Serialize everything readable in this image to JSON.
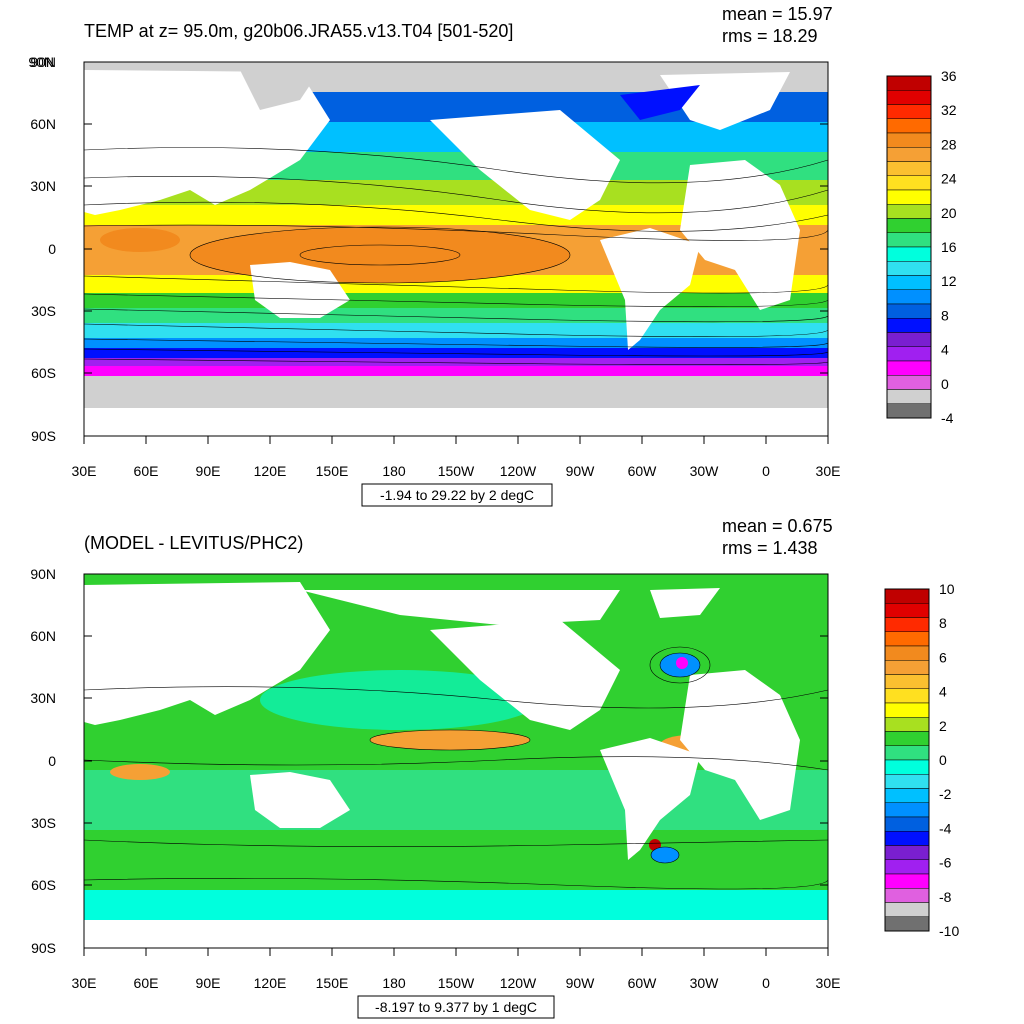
{
  "panels": [
    {
      "title": "TEMP at z=  95.0m, g20b06.JRA55.v13.T04 [501-520]",
      "mean_text": "mean = 15.97",
      "rms_text": "rms = 18.29",
      "range_text": "-1.94 to 29.22 by 2 degC",
      "colorbar": {
        "labels": [
          "36",
          "32",
          "28",
          "24",
          "20",
          "16",
          "12",
          "8",
          "4",
          "0",
          "-4"
        ],
        "colors": [
          "#c00000",
          "#e00000",
          "#ff2a00",
          "#ff6a00",
          "#f28a1e",
          "#f5a035",
          "#fbc030",
          "#ffe020",
          "#ffff00",
          "#a8e020",
          "#30d030",
          "#30e080",
          "#00ffdd",
          "#30e0f0",
          "#00c0ff",
          "#0090ff",
          "#0060e0",
          "#0010ff",
          "#7a1fd0",
          "#a020f0",
          "#ff00ff",
          "#e060e0",
          "#d0d0d0",
          "#707070"
        ]
      }
    },
    {
      "title": "(MODEL - LEVITUS/PHC2)",
      "mean_text": "mean = 0.675",
      "rms_text": "rms = 1.438",
      "range_text": "-8.197 to 9.377 by 1 degC",
      "colorbar": {
        "labels": [
          "10",
          "8",
          "6",
          "4",
          "2",
          "0",
          "-2",
          "-4",
          "-6",
          "-8",
          "-10"
        ],
        "colors": [
          "#c00000",
          "#e00000",
          "#ff2a00",
          "#ff6a00",
          "#f28a1e",
          "#f5a035",
          "#fbc030",
          "#ffe020",
          "#ffff00",
          "#a8e020",
          "#30d030",
          "#30e080",
          "#00ffdd",
          "#30e0f0",
          "#00c0ff",
          "#0090ff",
          "#0060e0",
          "#0010ff",
          "#7a1fd0",
          "#a020f0",
          "#ff00ff",
          "#e060e0",
          "#d0d0d0",
          "#707070"
        ]
      }
    }
  ],
  "axes": {
    "lat_labels": [
      "90N",
      "60N",
      "30N",
      "0",
      "30S",
      "60S",
      "90S"
    ],
    "lon_labels": [
      "30E",
      "60E",
      "90E",
      "120E",
      "150E",
      "180",
      "150W",
      "120W",
      "90W",
      "60W",
      "30W",
      "0",
      "30E"
    ]
  }
}
